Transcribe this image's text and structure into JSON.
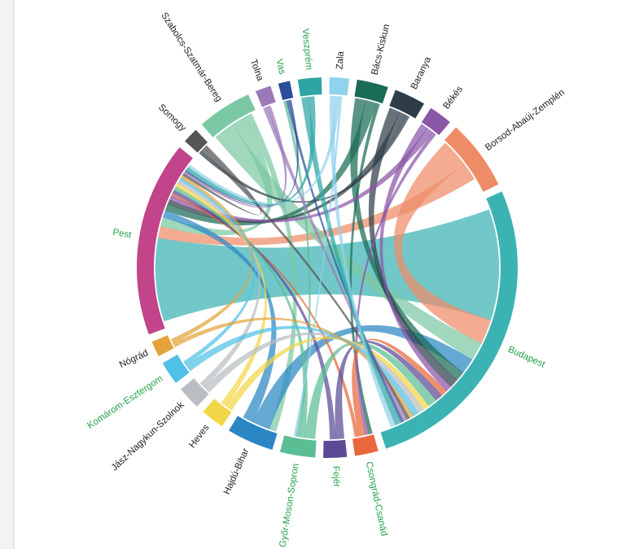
{
  "chart_data": {
    "type": "chord",
    "title": "",
    "label_color_default": "#222222",
    "label_color_highlight": "#23a04a",
    "groups": [
      {
        "name": "Budapest",
        "value": 40,
        "color": "#3bb3b3",
        "highlight": true
      },
      {
        "name": "Csongrád-Csanád",
        "value": 3,
        "color": "#e8673c",
        "highlight": true
      },
      {
        "name": "Fejér",
        "value": 3,
        "color": "#5c4a96",
        "highlight": true
      },
      {
        "name": "Győr-Moson-Sopron",
        "value": 4.5,
        "color": "#5bbd94",
        "highlight": true
      },
      {
        "name": "Hajdú-Bihar",
        "value": 6,
        "color": "#2b86c4",
        "highlight": false
      },
      {
        "name": "Heves",
        "value": 3,
        "color": "#f2d648",
        "highlight": false
      },
      {
        "name": "Jász-Nagykun-Szolnok",
        "value": 3,
        "color": "#b9bec2",
        "highlight": false
      },
      {
        "name": "Komárom-Esztergom",
        "value": 3,
        "color": "#4fc0e6",
        "highlight": true
      },
      {
        "name": "Nógrád",
        "value": 2,
        "color": "#e3a23a",
        "highlight": false
      },
      {
        "name": "Pest",
        "value": 25,
        "color": "#c2448a",
        "highlight": true
      },
      {
        "name": "Somogy",
        "value": 2,
        "color": "#555555",
        "highlight": false
      },
      {
        "name": "Szabolcs-Szatmár-Bereg",
        "value": 7,
        "color": "#7bc8a4",
        "highlight": false
      },
      {
        "name": "Tolna",
        "value": 2,
        "color": "#9b79b8",
        "highlight": false
      },
      {
        "name": "Vas",
        "value": 1.5,
        "color": "#2a4d9a",
        "highlight": true
      },
      {
        "name": "Veszprém",
        "value": 3,
        "color": "#2ea5a5",
        "highlight": true
      },
      {
        "name": "Zala",
        "value": 2.5,
        "color": "#8fd3ec",
        "highlight": false
      },
      {
        "name": "Bács-Kiskun",
        "value": 4,
        "color": "#1a6b55",
        "highlight": false
      },
      {
        "name": "Baranya",
        "value": 4,
        "color": "#2f3d48",
        "highlight": false
      },
      {
        "name": "Békés",
        "value": 3,
        "color": "#8a56a8",
        "highlight": false
      },
      {
        "name": "Borsod-Abaúj-Zemplén",
        "value": 9,
        "color": "#ee8c68",
        "highlight": false
      }
    ],
    "chords": [
      {
        "source": "Budapest",
        "target": "Pest",
        "value": 18
      },
      {
        "source": "Borsod-Abaúj-Zemplén",
        "target": "Budapest",
        "value": 4
      },
      {
        "source": "Borsod-Abaúj-Zemplén",
        "target": "Pest",
        "value": 2.5
      },
      {
        "source": "Szabolcs-Szatmár-Bereg",
        "target": "Budapest",
        "value": 3
      },
      {
        "source": "Szabolcs-Szatmár-Bereg",
        "target": "Pest",
        "value": 2
      },
      {
        "source": "Szabolcs-Szatmár-Bereg",
        "target": "Hajdú-Bihar",
        "value": 1
      },
      {
        "source": "Hajdú-Bihar",
        "target": "Budapest",
        "value": 2.5
      },
      {
        "source": "Hajdú-Bihar",
        "target": "Pest",
        "value": 1.5
      },
      {
        "source": "Bács-Kiskun",
        "target": "Budapest",
        "value": 1.5
      },
      {
        "source": "Bács-Kiskun",
        "target": "Pest",
        "value": 1.5
      },
      {
        "source": "Bács-Kiskun",
        "target": "Csongrád-Csanád",
        "value": 0.5
      },
      {
        "source": "Baranya",
        "target": "Budapest",
        "value": 1.5
      },
      {
        "source": "Baranya",
        "target": "Pest",
        "value": 1
      },
      {
        "source": "Baranya",
        "target": "Somogy",
        "value": 0.5
      },
      {
        "source": "Békés",
        "target": "Budapest",
        "value": 1
      },
      {
        "source": "Békés",
        "target": "Pest",
        "value": 1
      },
      {
        "source": "Békés",
        "target": "Csongrád-Csanád",
        "value": 0.5
      },
      {
        "source": "Csongrád-Csanád",
        "target": "Budapest",
        "value": 1
      },
      {
        "source": "Csongrád-Csanád",
        "target": "Pest",
        "value": 0.5
      },
      {
        "source": "Fejér",
        "target": "Budapest",
        "value": 1.2
      },
      {
        "source": "Fejér",
        "target": "Pest",
        "value": 0.8
      },
      {
        "source": "Győr-Moson-Sopron",
        "target": "Budapest",
        "value": 1.5
      },
      {
        "source": "Győr-Moson-Sopron",
        "target": "Pest",
        "value": 0.8
      },
      {
        "source": "Győr-Moson-Sopron",
        "target": "Vas",
        "value": 0.4
      },
      {
        "source": "Heves",
        "target": "Budapest",
        "value": 1
      },
      {
        "source": "Heves",
        "target": "Pest",
        "value": 0.8
      },
      {
        "source": "Jász-Nagykun-Szolnok",
        "target": "Budapest",
        "value": 1
      },
      {
        "source": "Jász-Nagykun-Szolnok",
        "target": "Pest",
        "value": 0.8
      },
      {
        "source": "Komárom-Esztergom",
        "target": "Budapest",
        "value": 1
      },
      {
        "source": "Komárom-Esztergom",
        "target": "Pest",
        "value": 0.6
      },
      {
        "source": "Nógrád",
        "target": "Budapest",
        "value": 0.6
      },
      {
        "source": "Nógrád",
        "target": "Pest",
        "value": 0.6
      },
      {
        "source": "Somogy",
        "target": "Budapest",
        "value": 0.5
      },
      {
        "source": "Somogy",
        "target": "Pest",
        "value": 0.5
      },
      {
        "source": "Tolna",
        "target": "Budapest",
        "value": 0.6
      },
      {
        "source": "Tolna",
        "target": "Pest",
        "value": 0.5
      },
      {
        "source": "Vas",
        "target": "Budapest",
        "value": 0.4
      },
      {
        "source": "Vas",
        "target": "Pest",
        "value": 0.3
      },
      {
        "source": "Veszprém",
        "target": "Budapest",
        "value": 1
      },
      {
        "source": "Veszprém",
        "target": "Pest",
        "value": 0.8
      },
      {
        "source": "Zala",
        "target": "Budapest",
        "value": 0.8
      },
      {
        "source": "Zala",
        "target": "Pest",
        "value": 0.6
      },
      {
        "source": "Zala",
        "target": "Győr-Moson-Sopron",
        "value": 0.3
      }
    ]
  }
}
